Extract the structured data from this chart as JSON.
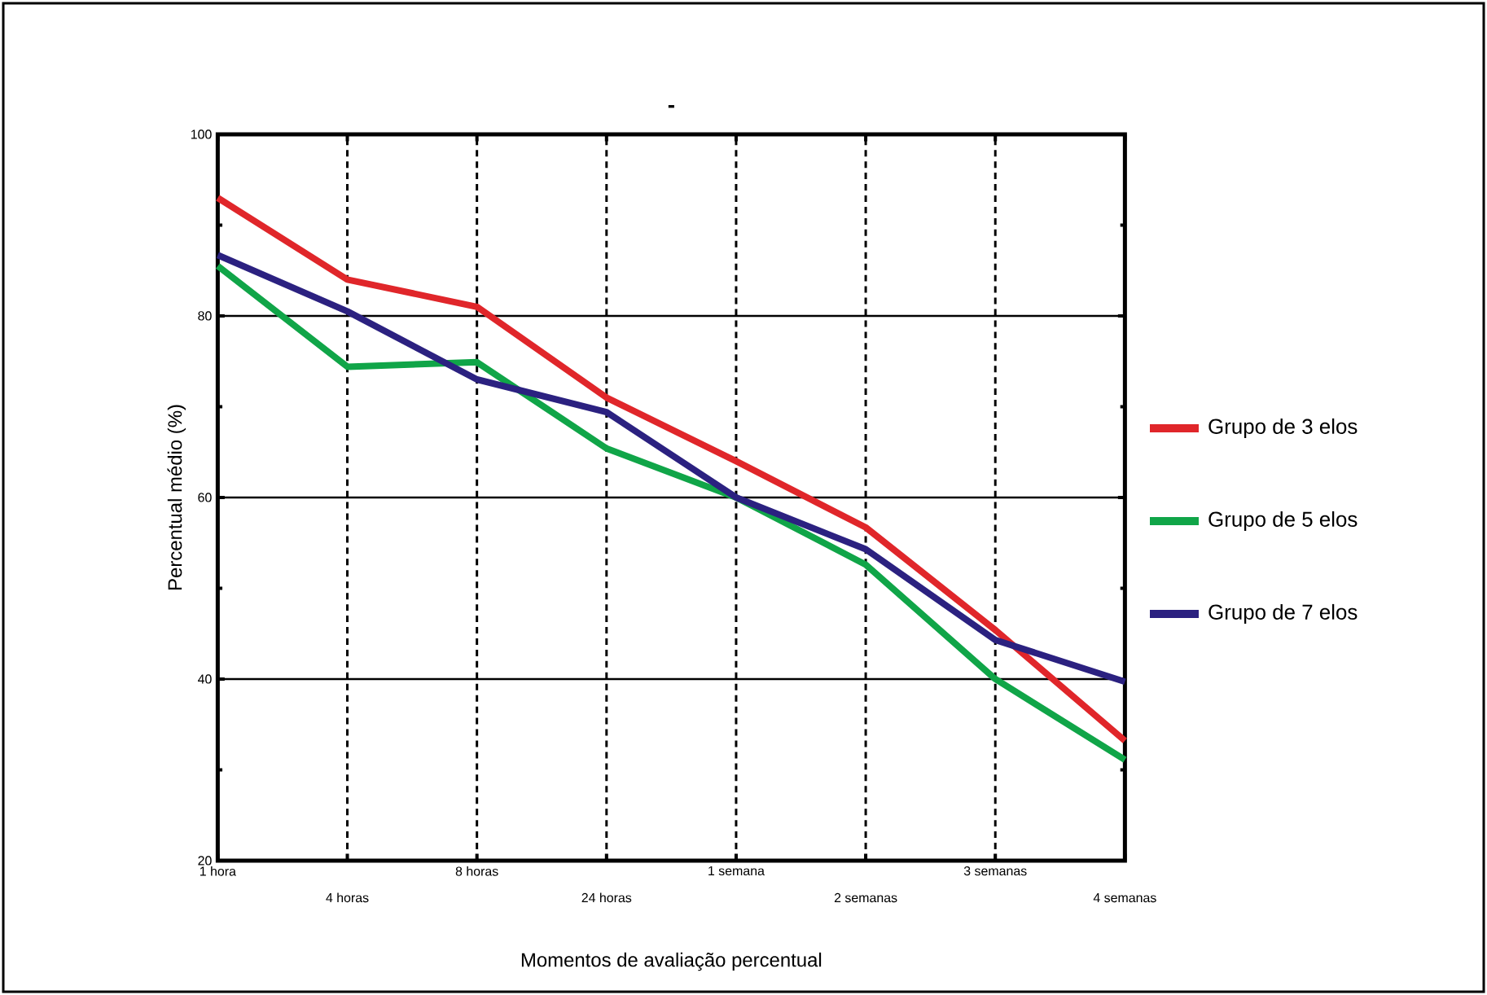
{
  "chart_data": {
    "type": "line",
    "title": "-",
    "xlabel": "Momentos de avaliação percentual",
    "ylabel": "Percentual médio (%)",
    "categories": [
      "1 hora",
      "4 horas",
      "8 horas",
      "24 horas",
      "1 semana",
      "2 semanas",
      "3 semanas",
      "4 semanas"
    ],
    "ylim": [
      20,
      100
    ],
    "yticks": [
      20,
      40,
      60,
      80,
      100
    ],
    "grid": true,
    "legend": "right",
    "line_style": "solid",
    "series": [
      {
        "name": "Grupo de 3 elos",
        "color": "#e0262a",
        "values": [
          93,
          84,
          81,
          71,
          64,
          56.7,
          45.4,
          33.2
        ]
      },
      {
        "name": "Grupo de 5 elos",
        "color": "#10a548",
        "values": [
          85.5,
          74.4,
          74.9,
          65.4,
          60,
          52.6,
          40,
          31.1
        ]
      },
      {
        "name": "Grupo de 7 elos",
        "color": "#2b2180",
        "values": [
          86.7,
          80.5,
          73,
          69.4,
          60,
          54.3,
          44.3,
          39.7
        ]
      }
    ]
  }
}
